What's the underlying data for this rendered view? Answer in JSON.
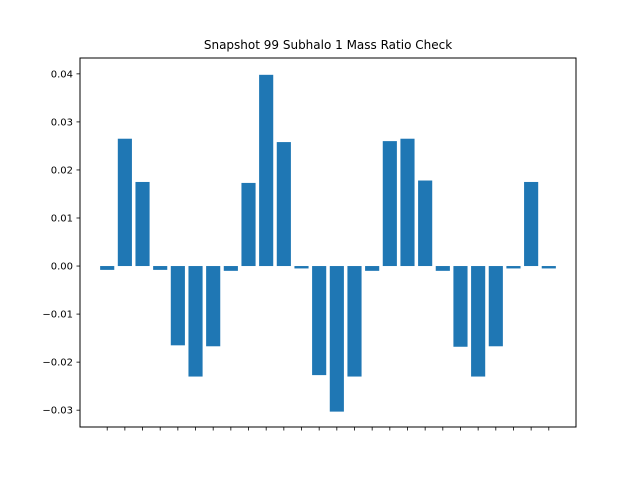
{
  "chart_data": {
    "type": "bar",
    "title": "Snapshot 99 Subhalo 1 Mass Ratio Check",
    "xlabel": "",
    "ylabel": "",
    "ylim": [
      -0.0335,
      0.0433
    ],
    "yticks": [
      -0.03,
      -0.02,
      -0.01,
      0.0,
      0.01,
      0.02,
      0.03,
      0.04
    ],
    "ytick_labels": [
      "−0.03",
      "−0.02",
      "−0.01",
      "0.00",
      "0.01",
      "0.02",
      "0.03",
      "0.04"
    ],
    "color": "#1f77b4",
    "grid": false,
    "values": [
      -0.0008,
      0.0265,
      0.0175,
      -0.0008,
      -0.0165,
      -0.023,
      -0.0167,
      -0.001,
      0.0173,
      0.0398,
      0.0258,
      -0.0005,
      -0.0227,
      -0.0303,
      -0.023,
      -0.001,
      0.026,
      0.0265,
      0.0178,
      -0.001,
      -0.0168,
      -0.023,
      -0.0167,
      -0.0005,
      0.0175,
      -0.0005
    ]
  }
}
